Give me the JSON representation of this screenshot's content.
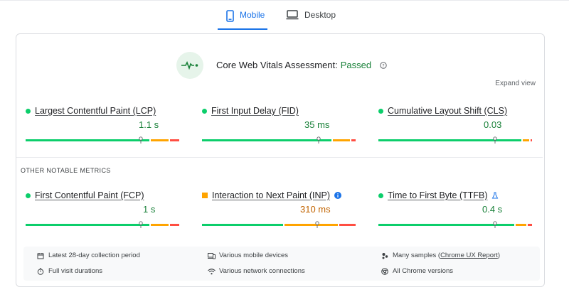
{
  "tabs": [
    {
      "label": "Mobile",
      "active": true
    },
    {
      "label": "Desktop",
      "active": false
    }
  ],
  "assessment": {
    "label": "Core Web Vitals Assessment:",
    "status": "Passed"
  },
  "expand_view": "Expand view",
  "core_metrics": [
    {
      "label": "Largest Contentful Paint (LCP)",
      "value": "1.1 s",
      "status": "good",
      "distribution": {
        "good": 0.82,
        "needs_improvement": 0.12,
        "poor": 0.06
      },
      "marker": 0.75
    },
    {
      "label": "First Input Delay (FID)",
      "value": "35 ms",
      "status": "good",
      "distribution": {
        "good": 0.86,
        "needs_improvement": 0.11,
        "poor": 0.03
      },
      "marker": 0.76
    },
    {
      "label": "Cumulative Layout Shift (CLS)",
      "value": "0.03",
      "status": "good",
      "distribution": {
        "good": 0.95,
        "needs_improvement": 0.04,
        "poor": 0.01
      },
      "marker": 0.76
    }
  ],
  "other_label": "OTHER NOTABLE METRICS",
  "other_metrics": [
    {
      "label": "First Contentful Paint (FCP)",
      "value": "1 s",
      "status": "good",
      "distribution": {
        "good": 0.82,
        "needs_improvement": 0.12,
        "poor": 0.06
      },
      "marker": 0.75
    },
    {
      "label": "Interaction to Next Paint (INP)",
      "value": "310 ms",
      "status": "needs-improvement",
      "distribution": {
        "good": 0.54,
        "needs_improvement": 0.35,
        "poor": 0.11
      },
      "marker": 0.75,
      "badge_icon": "info-icon"
    },
    {
      "label": "Time to First Byte (TTFB)",
      "value": "0.4 s",
      "status": "good",
      "distribution": {
        "good": 0.9,
        "needs_improvement": 0.07,
        "poor": 0.03
      },
      "marker": 0.76,
      "badge_icon": "flask-icon"
    }
  ],
  "footer": {
    "collection_period": "Latest 28-day collection period",
    "visit_durations": "Full visit durations",
    "devices": "Various mobile devices",
    "network": "Various network connections",
    "samples_prefix": "Many samples (",
    "samples_link": "Chrome UX Report",
    "samples_suffix": ")",
    "chrome_versions": "All Chrome versions"
  },
  "colors": {
    "accent": "#1a73e8",
    "good": "#0cce6b",
    "needs_improvement": "#ffa400",
    "poor": "#ff4e42",
    "passed_text": "#188038"
  }
}
